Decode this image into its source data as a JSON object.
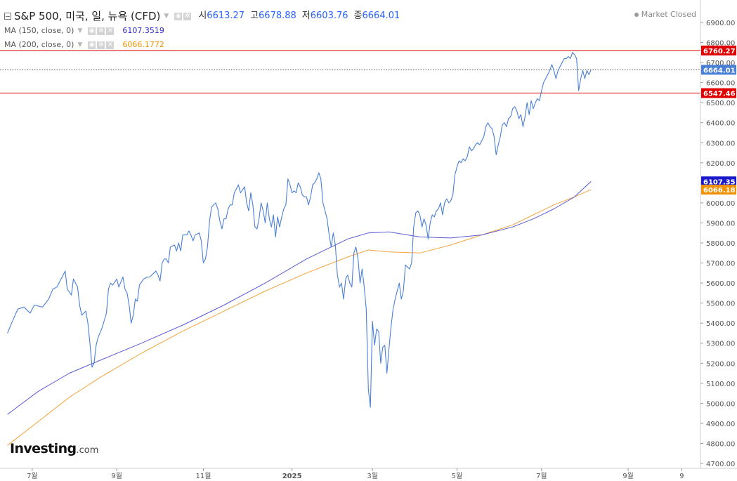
{
  "header": {
    "title": "S&P 500, 미국, 일, 뉴욕 (CFD)",
    "ohlc": [
      {
        "label": "시",
        "value": "6613.27"
      },
      {
        "label": "고",
        "value": "6678.88"
      },
      {
        "label": "저",
        "value": "6603.76"
      },
      {
        "label": "종",
        "value": "6664.01"
      }
    ],
    "status": "Market Closed"
  },
  "indicators": [
    {
      "label": "MA (150, close, 0)",
      "value": "6107.3519",
      "color": "#2b2bcf"
    },
    {
      "label": "MA (200, close, 0)",
      "value": "6066.1772",
      "color": "#f29100"
    }
  ],
  "logo": {
    "main": "Investing",
    "suffix": ".com"
  },
  "colors": {
    "price": "#4a7fd6",
    "ma150": "#5a5ad6",
    "ma200": "#f6a43c",
    "level": "#e00000",
    "axis": "#cfcfcf"
  },
  "chart_data": {
    "type": "line",
    "ylim": [
      4700,
      6900
    ],
    "y_ticks": [
      4700,
      4800,
      4900,
      5000,
      5100,
      5200,
      5300,
      5400,
      5500,
      5600,
      5700,
      5800,
      5900,
      6000,
      6100,
      6200,
      6300,
      6400,
      6500,
      6600,
      6700,
      6800,
      6900
    ],
    "x_ticks": [
      {
        "label": "7월",
        "idx": 7
      },
      {
        "label": "9월",
        "idx": 48
      },
      {
        "label": "11월",
        "idx": 90
      },
      {
        "label": "2025",
        "idx": 133
      },
      {
        "label": "3월",
        "idx": 172
      },
      {
        "label": "5월",
        "idx": 213
      },
      {
        "label": "7월",
        "idx": 254
      },
      {
        "label": "9월",
        "idx": 296
      },
      {
        "label": "9",
        "idx": 322
      }
    ],
    "x_range": [
      -5,
      340
    ],
    "series": [
      {
        "key": "price",
        "points": [
          [
            -5,
            5350
          ],
          [
            -3,
            5400
          ],
          [
            0,
            5470
          ],
          [
            3,
            5480
          ],
          [
            6,
            5450
          ],
          [
            8,
            5490
          ],
          [
            12,
            5480
          ],
          [
            15,
            5520
          ],
          [
            17,
            5570
          ],
          [
            19,
            5580
          ],
          [
            21,
            5620
          ],
          [
            23,
            5660
          ],
          [
            24,
            5570
          ],
          [
            26,
            5540
          ],
          [
            27,
            5620
          ],
          [
            29,
            5580
          ],
          [
            30,
            5490
          ],
          [
            31,
            5440
          ],
          [
            33,
            5460
          ],
          [
            34,
            5400
          ],
          [
            35,
            5300
          ],
          [
            36,
            5180
          ],
          [
            37,
            5200
          ],
          [
            38,
            5290
          ],
          [
            39,
            5330
          ],
          [
            41,
            5380
          ],
          [
            43,
            5450
          ],
          [
            44,
            5570
          ],
          [
            45,
            5600
          ],
          [
            46,
            5590
          ],
          [
            48,
            5620
          ],
          [
            49,
            5580
          ],
          [
            51,
            5630
          ],
          [
            52,
            5570
          ],
          [
            53,
            5550
          ],
          [
            54,
            5490
          ],
          [
            55,
            5400
          ],
          [
            56,
            5440
          ],
          [
            57,
            5520
          ],
          [
            58,
            5510
          ],
          [
            59,
            5590
          ],
          [
            61,
            5620
          ],
          [
            63,
            5630
          ],
          [
            64,
            5630
          ],
          [
            66,
            5650
          ],
          [
            67,
            5660
          ],
          [
            68,
            5640
          ],
          [
            69,
            5610
          ],
          [
            70,
            5700
          ],
          [
            71,
            5720
          ],
          [
            72,
            5720
          ],
          [
            73,
            5700
          ],
          [
            74,
            5780
          ],
          [
            76,
            5790
          ],
          [
            77,
            5760
          ],
          [
            78,
            5800
          ],
          [
            79,
            5760
          ],
          [
            80,
            5840
          ],
          [
            82,
            5840
          ],
          [
            83,
            5860
          ],
          [
            84,
            5840
          ],
          [
            85,
            5810
          ],
          [
            86,
            5840
          ],
          [
            88,
            5850
          ],
          [
            89,
            5810
          ],
          [
            90,
            5700
          ],
          [
            91,
            5720
          ],
          [
            92,
            5780
          ],
          [
            93,
            5910
          ],
          [
            94,
            5980
          ],
          [
            96,
            6000
          ],
          [
            97,
            5970
          ],
          [
            98,
            5910
          ],
          [
            99,
            5870
          ],
          [
            100,
            5920
          ],
          [
            101,
            5920
          ],
          [
            102,
            5970
          ],
          [
            103,
            5990
          ],
          [
            104,
            5990
          ],
          [
            105,
            6050
          ],
          [
            107,
            6090
          ],
          [
            108,
            6050
          ],
          [
            110,
            6080
          ],
          [
            111,
            6000
          ],
          [
            112,
            5960
          ],
          [
            113,
            6050
          ],
          [
            114,
            5990
          ],
          [
            115,
            5880
          ],
          [
            116,
            5870
          ],
          [
            117,
            5920
          ],
          [
            118,
            6000
          ],
          [
            119,
            5960
          ],
          [
            120,
            5900
          ],
          [
            121,
            6000
          ],
          [
            122,
            5920
          ],
          [
            123,
            5880
          ],
          [
            124,
            5940
          ],
          [
            125,
            5830
          ],
          [
            126,
            5930
          ],
          [
            127,
            5880
          ],
          [
            128,
            5930
          ],
          [
            129,
            5970
          ],
          [
            130,
            5990
          ],
          [
            131,
            6120
          ],
          [
            132,
            6090
          ],
          [
            133,
            6050
          ],
          [
            134,
            6060
          ],
          [
            135,
            6050
          ],
          [
            136,
            6100
          ],
          [
            137,
            6080
          ],
          [
            138,
            6040
          ],
          [
            139,
            6030
          ],
          [
            140,
            6030
          ],
          [
            141,
            5990
          ],
          [
            142,
            6030
          ],
          [
            143,
            6090
          ],
          [
            144,
            6100
          ],
          [
            145,
            6120
          ],
          [
            146,
            6150
          ],
          [
            147,
            6120
          ],
          [
            148,
            6000
          ],
          [
            149,
            5960
          ],
          [
            150,
            5920
          ],
          [
            151,
            5840
          ],
          [
            152,
            5780
          ],
          [
            153,
            5850
          ],
          [
            154,
            5790
          ],
          [
            155,
            5640
          ],
          [
            156,
            5580
          ],
          [
            157,
            5600
          ],
          [
            158,
            5520
          ],
          [
            159,
            5620
          ],
          [
            160,
            5640
          ],
          [
            161,
            5600
          ],
          [
            162,
            5580
          ],
          [
            163,
            5750
          ],
          [
            164,
            5780
          ],
          [
            165,
            5720
          ],
          [
            166,
            5600
          ],
          [
            167,
            5670
          ],
          [
            168,
            5580
          ],
          [
            169,
            5470
          ],
          [
            170,
            5070
          ],
          [
            171,
            4980
          ],
          [
            172,
            5410
          ],
          [
            173,
            5290
          ],
          [
            174,
            5370
          ],
          [
            175,
            5360
          ],
          [
            176,
            5200
          ],
          [
            177,
            5280
          ],
          [
            178,
            5290
          ],
          [
            179,
            5150
          ],
          [
            180,
            5270
          ],
          [
            181,
            5380
          ],
          [
            182,
            5470
          ],
          [
            183,
            5520
          ],
          [
            184,
            5560
          ],
          [
            185,
            5600
          ],
          [
            186,
            5520
          ],
          [
            187,
            5560
          ],
          [
            188,
            5690
          ],
          [
            189,
            5680
          ],
          [
            190,
            5670
          ],
          [
            191,
            5700
          ],
          [
            192,
            5880
          ],
          [
            193,
            5950
          ],
          [
            194,
            5960
          ],
          [
            195,
            5940
          ],
          [
            196,
            5880
          ],
          [
            197,
            5920
          ],
          [
            198,
            5890
          ],
          [
            199,
            5820
          ],
          [
            200,
            5900
          ],
          [
            201,
            5940
          ],
          [
            202,
            5930
          ],
          [
            203,
            5960
          ],
          [
            204,
            5970
          ],
          [
            205,
            6000
          ],
          [
            206,
            5940
          ],
          [
            207,
            6000
          ],
          [
            208,
            6020
          ],
          [
            209,
            6000
          ],
          [
            210,
            6010
          ],
          [
            211,
            6040
          ],
          [
            212,
            6140
          ],
          [
            213,
            6180
          ],
          [
            214,
            6210
          ],
          [
            215,
            6200
          ],
          [
            216,
            6220
          ],
          [
            217,
            6210
          ],
          [
            218,
            6230
          ],
          [
            219,
            6280
          ],
          [
            220,
            6260
          ],
          [
            221,
            6270
          ],
          [
            222,
            6290
          ],
          [
            223,
            6300
          ],
          [
            224,
            6290
          ],
          [
            225,
            6310
          ],
          [
            226,
            6330
          ],
          [
            227,
            6380
          ],
          [
            228,
            6400
          ],
          [
            229,
            6380
          ],
          [
            230,
            6370
          ],
          [
            231,
            6330
          ],
          [
            232,
            6240
          ],
          [
            233,
            6290
          ],
          [
            234,
            6330
          ],
          [
            235,
            6390
          ],
          [
            236,
            6400
          ],
          [
            237,
            6380
          ],
          [
            238,
            6420
          ],
          [
            239,
            6430
          ],
          [
            240,
            6470
          ],
          [
            241,
            6480
          ],
          [
            242,
            6460
          ],
          [
            243,
            6420
          ],
          [
            244,
            6440
          ],
          [
            245,
            6380
          ],
          [
            246,
            6430
          ],
          [
            247,
            6500
          ],
          [
            248,
            6440
          ],
          [
            249,
            6510
          ],
          [
            250,
            6470
          ],
          [
            251,
            6500
          ],
          [
            252,
            6520
          ],
          [
            253,
            6510
          ],
          [
            254,
            6560
          ],
          [
            255,
            6600
          ],
          [
            256,
            6620
          ],
          [
            257,
            6640
          ],
          [
            258,
            6660
          ],
          [
            259,
            6690
          ],
          [
            260,
            6660
          ],
          [
            261,
            6620
          ],
          [
            262,
            6660
          ],
          [
            263,
            6680
          ],
          [
            264,
            6700
          ],
          [
            265,
            6720
          ],
          [
            266,
            6720
          ],
          [
            267,
            6730
          ],
          [
            268,
            6720
          ],
          [
            269,
            6750
          ],
          [
            270,
            6740
          ],
          [
            271,
            6720
          ],
          [
            272,
            6560
          ],
          [
            273,
            6620
          ],
          [
            274,
            6660
          ],
          [
            275,
            6620
          ],
          [
            276,
            6660
          ],
          [
            277,
            6640
          ],
          [
            278,
            6664
          ]
        ]
      },
      {
        "key": "ma150",
        "points": [
          [
            -5,
            4945
          ],
          [
            10,
            5060
          ],
          [
            25,
            5150
          ],
          [
            40,
            5215
          ],
          [
            60,
            5300
          ],
          [
            80,
            5390
          ],
          [
            100,
            5490
          ],
          [
            120,
            5600
          ],
          [
            140,
            5720
          ],
          [
            160,
            5820
          ],
          [
            170,
            5850
          ],
          [
            180,
            5855
          ],
          [
            195,
            5830
          ],
          [
            210,
            5825
          ],
          [
            225,
            5840
          ],
          [
            240,
            5880
          ],
          [
            250,
            5920
          ],
          [
            260,
            5970
          ],
          [
            270,
            6030
          ],
          [
            278,
            6107
          ]
        ]
      },
      {
        "key": "ma200",
        "points": [
          [
            -5,
            4790
          ],
          [
            10,
            4910
          ],
          [
            25,
            5030
          ],
          [
            40,
            5130
          ],
          [
            60,
            5250
          ],
          [
            80,
            5360
          ],
          [
            100,
            5460
          ],
          [
            120,
            5560
          ],
          [
            140,
            5650
          ],
          [
            160,
            5730
          ],
          [
            170,
            5765
          ],
          [
            180,
            5755
          ],
          [
            195,
            5750
          ],
          [
            210,
            5790
          ],
          [
            225,
            5840
          ],
          [
            240,
            5890
          ],
          [
            250,
            5940
          ],
          [
            260,
            5990
          ],
          [
            270,
            6030
          ],
          [
            278,
            6066
          ]
        ]
      }
    ],
    "levels": [
      {
        "value": 6760.27,
        "label": "6760.27",
        "style": "solid",
        "color": "#e00000"
      },
      {
        "value": 6547.46,
        "label": "6547.46",
        "style": "solid",
        "color": "#e00000"
      },
      {
        "value": 6664.01,
        "label": "6664.01",
        "style": "dotted",
        "color": "#4a7fd6"
      }
    ],
    "markers": [
      {
        "value": 6107.35,
        "label": "6107.35",
        "color": "#1a1acc"
      },
      {
        "value": 6066.18,
        "label": "6066.18",
        "color": "#f29100"
      }
    ]
  }
}
